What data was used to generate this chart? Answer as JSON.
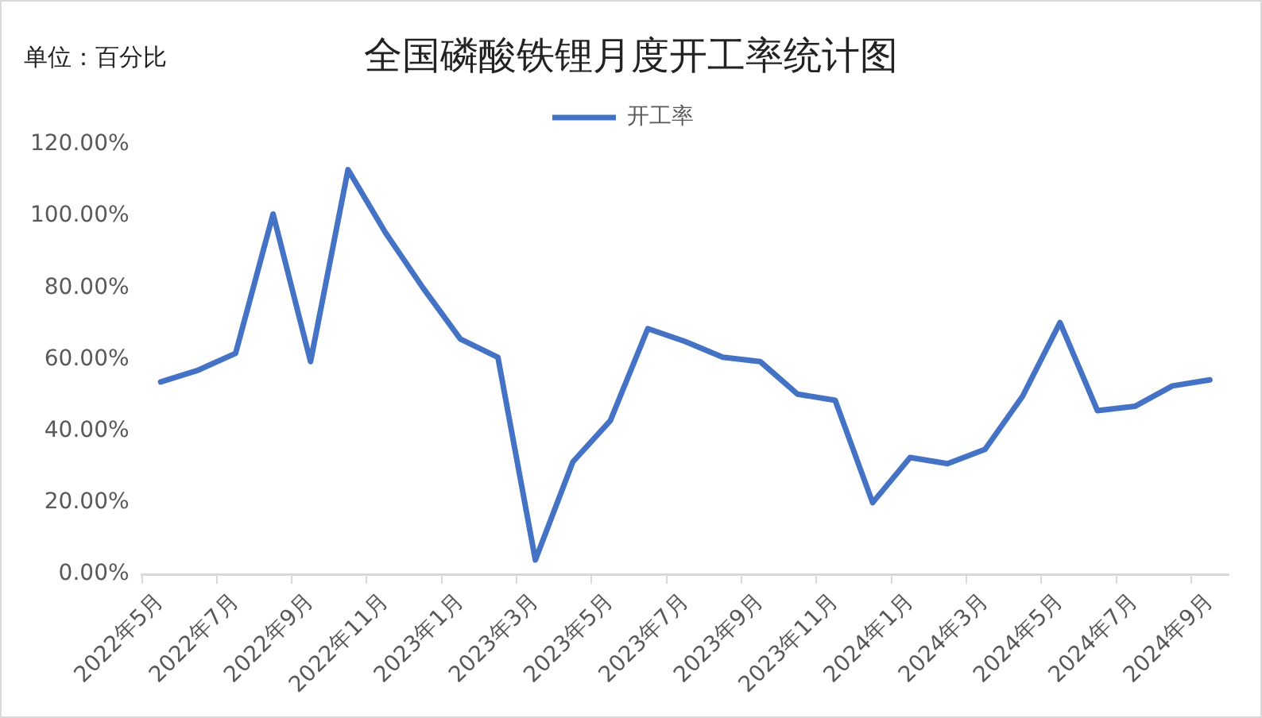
{
  "chart_data": {
    "type": "line",
    "title": "全国磷酸铁锂月度开工率统计图",
    "annotations": [
      "单位：百分比"
    ],
    "categories": [
      "2022年5月",
      null,
      "2022年7月",
      null,
      "2022年9月",
      null,
      "2022年11月",
      null,
      "2023年1月",
      null,
      "2023年3月",
      null,
      "2023年5月",
      null,
      "2023年7月",
      null,
      "2023年9月",
      null,
      "2023年11月",
      null,
      "2024年1月",
      null,
      "2024年3月",
      null,
      "2024年5月",
      null,
      "2024年7月",
      null,
      "2024年9月"
    ],
    "series": [
      {
        "name": "开工率",
        "color": "#4472c4",
        "values": [
          53.7,
          57,
          61.7,
          100.6,
          59.4,
          113,
          95.4,
          80,
          65.7,
          60.6,
          4,
          31.4,
          42.9,
          68.6,
          65,
          60.6,
          59.4,
          50.3,
          48.6,
          20,
          32.6,
          30.9,
          34.9,
          49.7,
          70.3,
          45.7,
          46.9,
          52.6,
          54.3
        ]
      }
    ],
    "ylim": [
      0,
      120
    ],
    "yticks": [
      {
        "value": 0,
        "label": "0.00%"
      },
      {
        "value": 20,
        "label": "20.00%"
      },
      {
        "value": 40,
        "label": "40.00%"
      },
      {
        "value": 60,
        "label": "60.00%"
      },
      {
        "value": 80,
        "label": "80.00%"
      },
      {
        "value": 100,
        "label": "100.00%"
      },
      {
        "value": 120,
        "label": "120.00%"
      }
    ],
    "grid": false,
    "legend": "top",
    "marker": "none",
    "line_style": "solid"
  }
}
